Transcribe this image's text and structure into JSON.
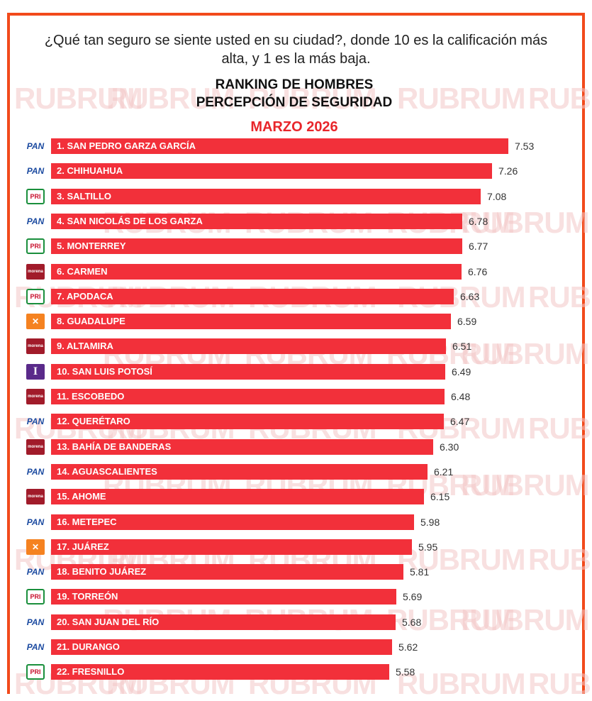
{
  "header": {
    "question": "¿Qué tan seguro se siente usted en su ciudad?, donde 10 es la calificación más alta, y  1 es la más baja.",
    "title_line1": "RANKING DE HOMBRES",
    "title_line2": "PERCEPCIÓN DE SEGURIDAD",
    "month": "MARZO 2026"
  },
  "watermark_text": "RUBRUM",
  "colors": {
    "bar": "#f2303a",
    "frame": "#f24a1b",
    "month": "#e8262b"
  },
  "chart_data": {
    "type": "bar",
    "orientation": "horizontal",
    "title": "RANKING DE HOMBRES PERCEPCIÓN DE SEGURIDAD",
    "subtitle": "MARZO 2026",
    "xlim": [
      0,
      10
    ],
    "categories": [
      "1. SAN PEDRO GARZA GARCÍA",
      "2. CHIHUAHUA",
      "3. SALTILLO",
      "4. SAN NICOLÁS DE LOS GARZA",
      "5. MONTERREY",
      "6. CARMEN",
      "7. APODACA",
      "8. GUADALUPE",
      "9. ALTAMIRA",
      "10. SAN LUIS POTOSÍ",
      "11. ESCOBEDO",
      "12. QUERÉTARO",
      "13. BAHÍA DE BANDERAS",
      "14. AGUASCALIENTES",
      "15. AHOME",
      "16. METEPEC",
      "17. JUÁREZ",
      "18. BENITO JUÁREZ",
      "19. TORREÓN",
      "20. SAN JUAN DEL RÍO",
      "21. DURANGO",
      "22. FRESNILLO"
    ],
    "values": [
      7.53,
      7.26,
      7.08,
      6.78,
      6.77,
      6.76,
      6.63,
      6.59,
      6.51,
      6.49,
      6.48,
      6.47,
      6.3,
      6.21,
      6.15,
      5.98,
      5.95,
      5.81,
      5.69,
      5.68,
      5.62,
      5.58
    ],
    "value_labels": [
      "7.53",
      "7.26",
      "7.08",
      "6.78",
      "6.77",
      "6.76",
      "6.63",
      "6.59",
      "6.51",
      "6.49",
      "6.48",
      "6.47",
      "6.30",
      "6.21",
      "6.15",
      "5.98",
      "5.95",
      "5.81",
      "5.69",
      "5.68",
      "5.62",
      "5.58"
    ],
    "party_icons": [
      "pan",
      "pan",
      "pri",
      "pan",
      "pri",
      "morena",
      "pri",
      "mc",
      "morena",
      "independent",
      "morena",
      "pan",
      "morena",
      "pan",
      "morena",
      "pan",
      "mc",
      "pan",
      "pri",
      "pan",
      "pan",
      "pri"
    ],
    "party_icon_text": {
      "pan": "PAN",
      "pri": "PRI",
      "morena": "morena",
      "mc": "✕",
      "independent": "I"
    }
  }
}
